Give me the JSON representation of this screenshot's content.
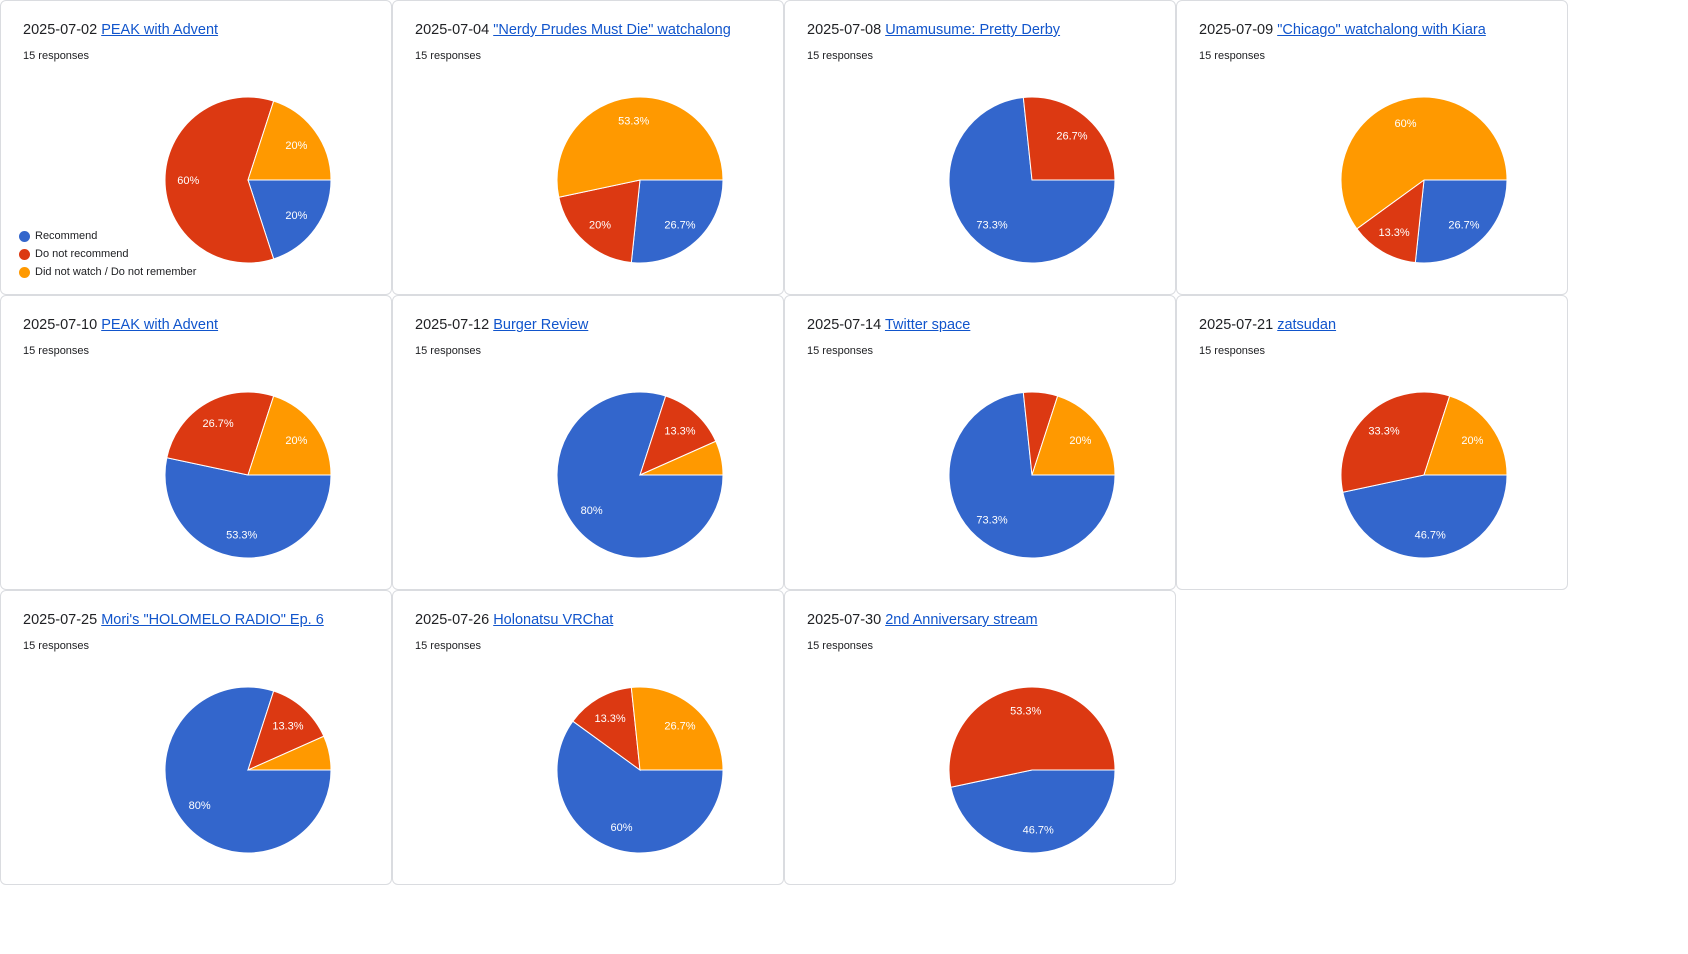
{
  "legend": [
    {
      "label": "Recommend",
      "color": "#3366cc"
    },
    {
      "label": "Do not recommend",
      "color": "#dc3912"
    },
    {
      "label": "Did not watch / Do not remember",
      "color": "#ff9900"
    }
  ],
  "chart_data": [
    {
      "type": "pie",
      "date": "2025-07-02",
      "title": "PEAK with Advent",
      "responses": "15 responses",
      "values": [
        3,
        9,
        3
      ],
      "labels": [
        "20%",
        "60%",
        "20%"
      ]
    },
    {
      "type": "pie",
      "date": "2025-07-04",
      "title": "\"Nerdy Prudes Must Die\" watchalong",
      "responses": "15 responses",
      "values": [
        4,
        3,
        8
      ],
      "labels": [
        "26.7%",
        "20%",
        "53.3%"
      ]
    },
    {
      "type": "pie",
      "date": "2025-07-08",
      "title": "Umamusume: Pretty Derby",
      "responses": "15 responses",
      "values": [
        11,
        4,
        0
      ],
      "labels": [
        "73.3%",
        "26.7%",
        ""
      ]
    },
    {
      "type": "pie",
      "date": "2025-07-09",
      "title": "\"Chicago\" watchalong with Kiara",
      "responses": "15 responses",
      "values": [
        4,
        2,
        9
      ],
      "labels": [
        "26.7%",
        "13.3%",
        "60%"
      ]
    },
    {
      "type": "pie",
      "date": "2025-07-10",
      "title": "PEAK with Advent",
      "responses": "15 responses",
      "values": [
        8,
        4,
        3
      ],
      "labels": [
        "53.3%",
        "26.7%",
        "20%"
      ]
    },
    {
      "type": "pie",
      "date": "2025-07-12",
      "title": "Burger Review",
      "responses": "15 responses",
      "values": [
        12,
        2,
        1
      ],
      "labels": [
        "80%",
        "13.3%",
        ""
      ]
    },
    {
      "type": "pie",
      "date": "2025-07-14",
      "title": "Twitter space",
      "responses": "15 responses",
      "values": [
        11,
        1,
        3
      ],
      "labels": [
        "73.3%",
        "",
        "20%"
      ]
    },
    {
      "type": "pie",
      "date": "2025-07-21",
      "title": "zatsudan",
      "responses": "15 responses",
      "values": [
        7,
        5,
        3
      ],
      "labels": [
        "46.7%",
        "33.3%",
        "20%"
      ]
    },
    {
      "type": "pie",
      "date": "2025-07-25",
      "title": "Mori's \"HOLOMELO RADIO\" Ep. 6",
      "responses": "15 responses",
      "values": [
        12,
        2,
        1
      ],
      "labels": [
        "80%",
        "13.3%",
        ""
      ]
    },
    {
      "type": "pie",
      "date": "2025-07-26",
      "title": "Holonatsu VRChat",
      "responses": "15 responses",
      "values": [
        9,
        2,
        4
      ],
      "labels": [
        "60%",
        "13.3%",
        "26.7%"
      ]
    },
    {
      "type": "pie",
      "date": "2025-07-30",
      "title": "2nd Anniversary stream",
      "responses": "15 responses",
      "values": [
        7,
        8,
        0
      ],
      "labels": [
        "46.7%",
        "53.3%",
        ""
      ]
    }
  ]
}
